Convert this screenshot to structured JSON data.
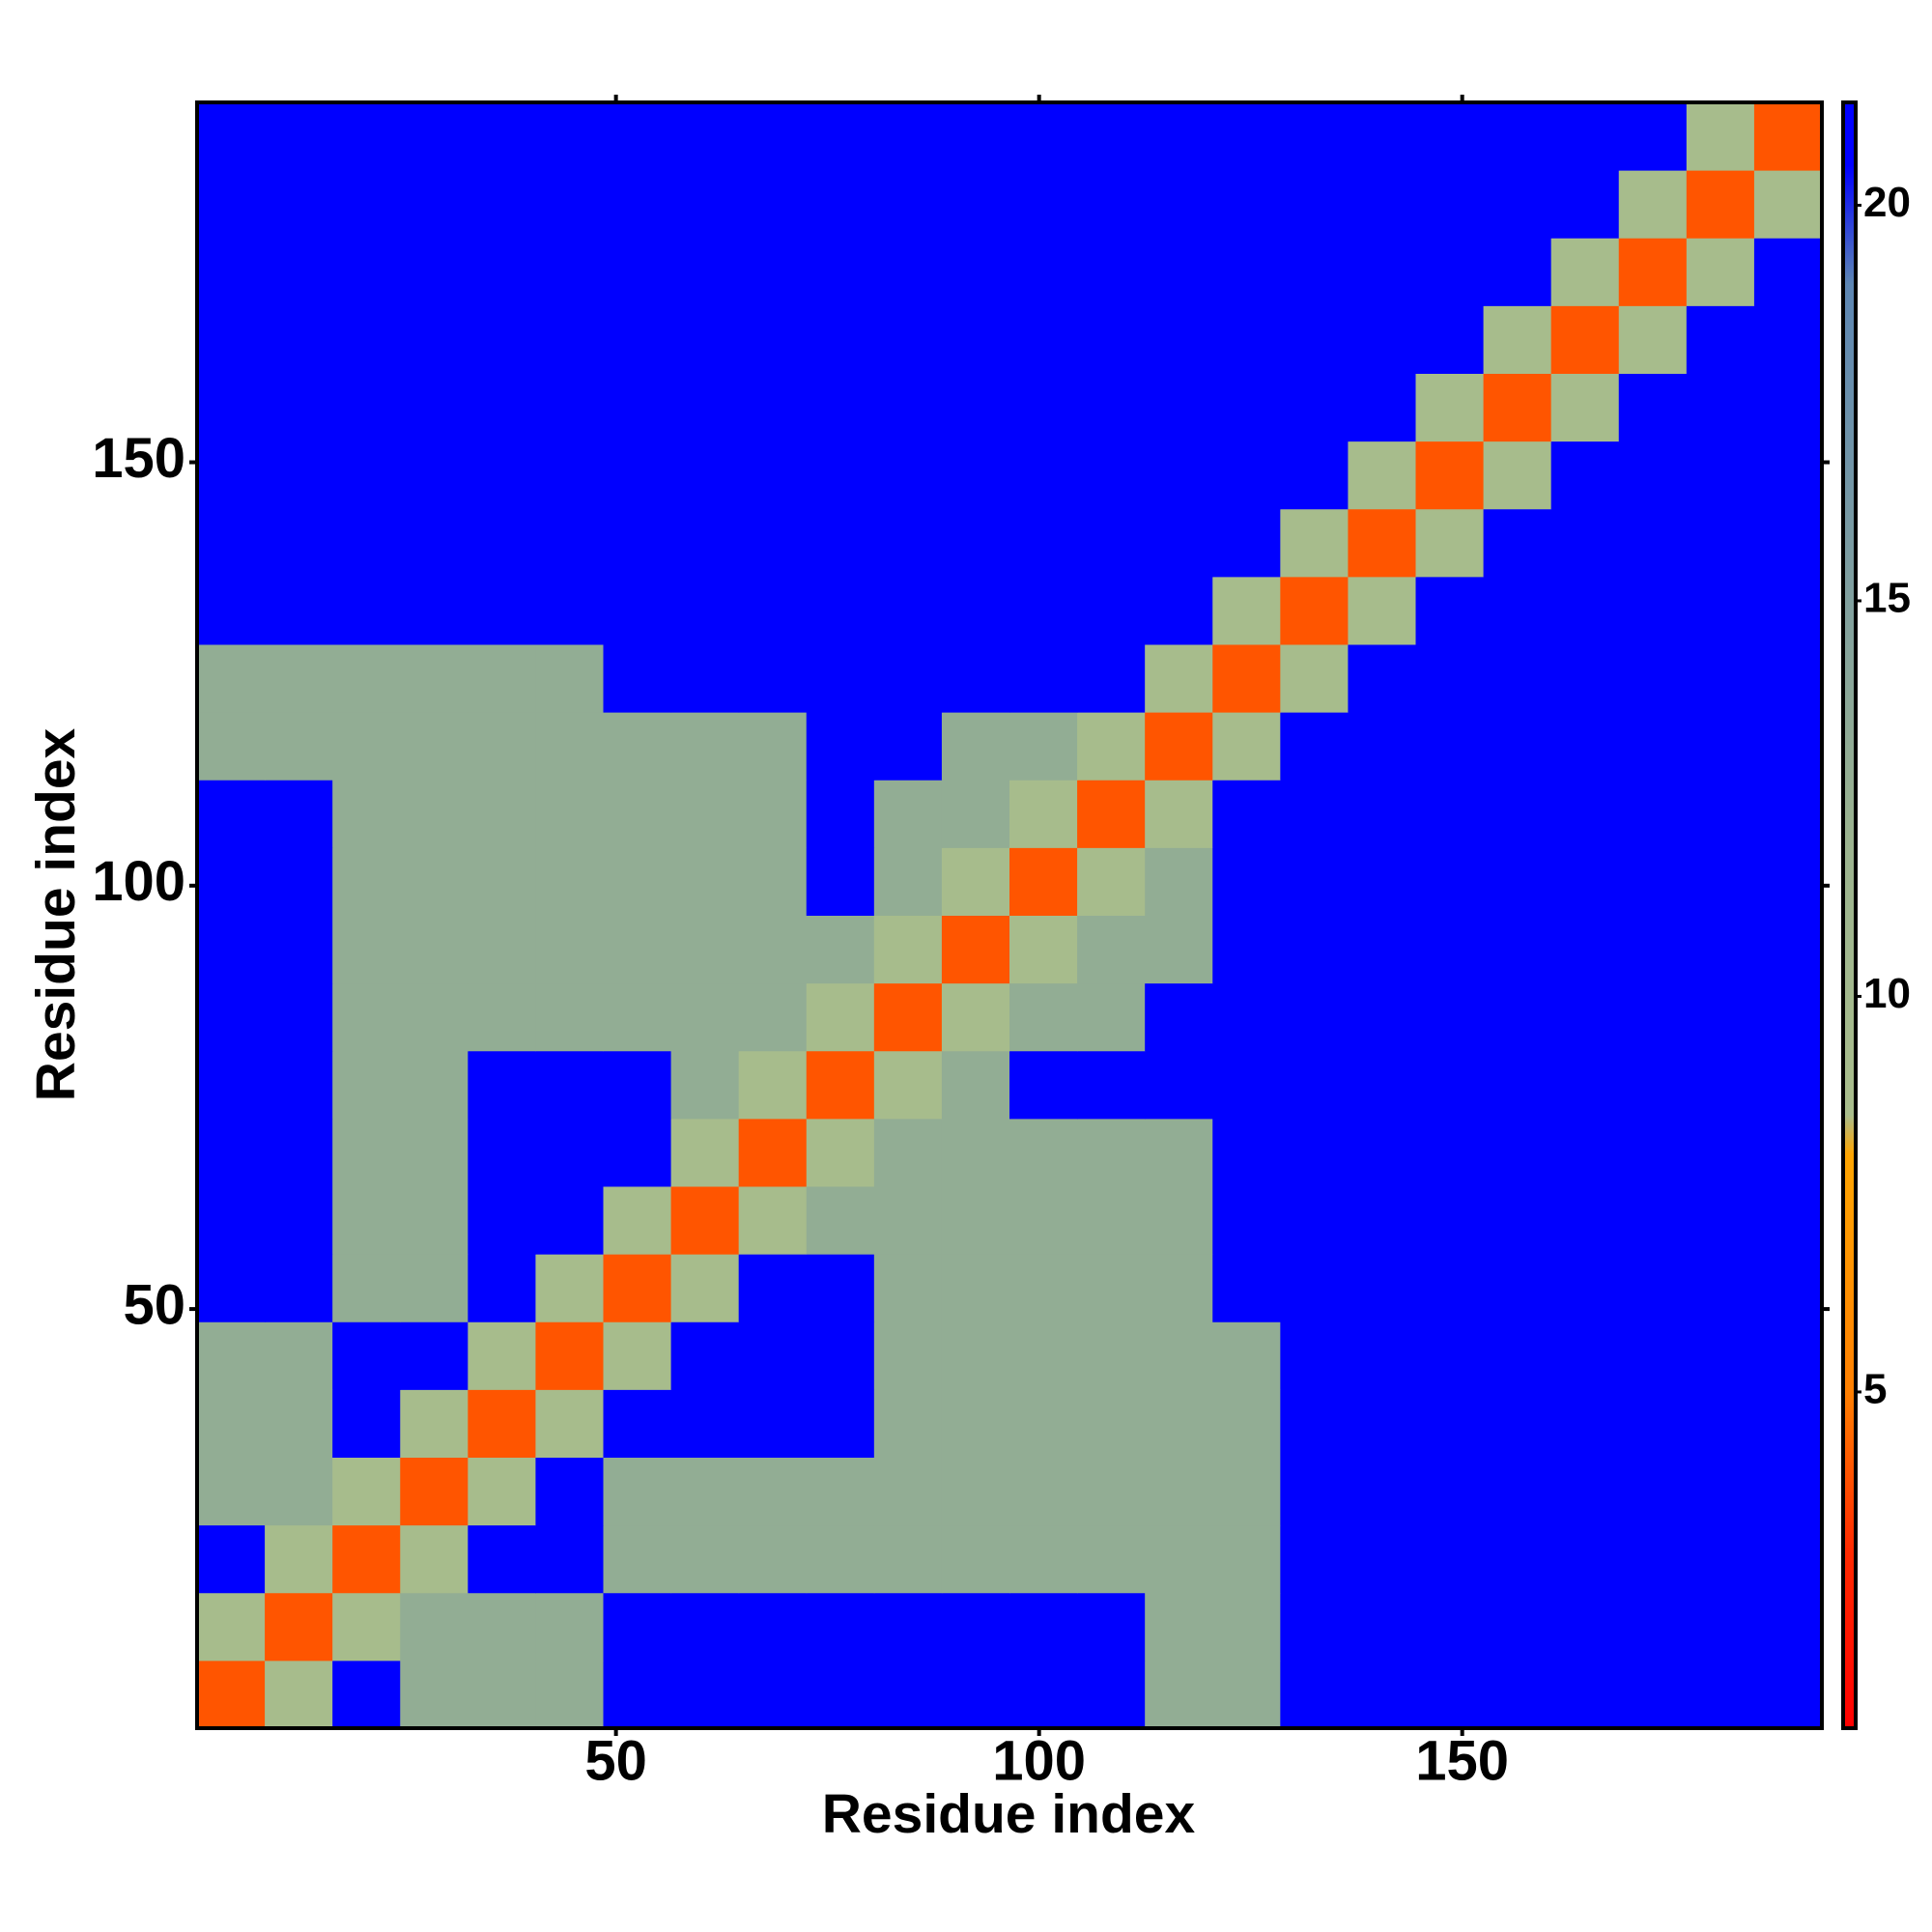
{
  "chart_data": {
    "type": "heatmap",
    "xlabel": "Residue index",
    "ylabel": "Residue index",
    "x": [
      4.5,
      12.5,
      20.5,
      28.5,
      36.5,
      44.5,
      52.5,
      60.5,
      68.5,
      76.5,
      84.5,
      92.5,
      100.5,
      108.5,
      116.5,
      124.5,
      132.5,
      140.5,
      148.5,
      156.5,
      164.5,
      172.5,
      180.5,
      188.5
    ],
    "y": [
      4.5,
      12.5,
      20.5,
      28.5,
      36.5,
      44.5,
      52.5,
      60.5,
      68.5,
      76.5,
      84.5,
      92.5,
      100.5,
      108.5,
      116.5,
      124.5,
      132.5,
      140.5,
      148.5,
      156.5,
      164.5,
      172.5,
      180.5,
      188.5
    ],
    "z": [
      [
        4,
        9,
        21,
        13,
        13,
        13,
        21,
        21,
        21,
        21,
        21,
        21,
        21,
        21,
        13,
        13,
        21,
        21,
        21,
        21,
        21,
        21,
        21,
        21
      ],
      [
        9,
        4,
        9,
        13,
        13,
        13,
        21,
        21,
        21,
        21,
        21,
        21,
        21,
        21,
        13,
        13,
        21,
        21,
        21,
        21,
        21,
        21,
        21,
        21
      ],
      [
        21,
        9,
        4,
        9,
        21,
        21,
        13,
        13,
        13,
        13,
        13,
        13,
        13,
        13,
        13,
        13,
        21,
        21,
        21,
        21,
        21,
        21,
        21,
        21
      ],
      [
        13,
        13,
        9,
        4,
        9,
        21,
        13,
        13,
        13,
        13,
        13,
        13,
        13,
        13,
        13,
        13,
        21,
        21,
        21,
        21,
        21,
        21,
        21,
        21
      ],
      [
        13,
        13,
        21,
        9,
        4,
        9,
        21,
        21,
        21,
        21,
        13,
        13,
        13,
        13,
        13,
        13,
        21,
        21,
        21,
        21,
        21,
        21,
        21,
        21
      ],
      [
        13,
        13,
        21,
        21,
        9,
        4,
        9,
        21,
        21,
        21,
        13,
        13,
        13,
        13,
        13,
        13,
        21,
        21,
        21,
        21,
        21,
        21,
        21,
        21
      ],
      [
        21,
        21,
        13,
        13,
        21,
        9,
        4,
        9,
        21,
        21,
        13,
        13,
        13,
        13,
        13,
        21,
        21,
        21,
        21,
        21,
        21,
        21,
        21,
        21
      ],
      [
        21,
        21,
        13,
        13,
        21,
        21,
        9,
        4,
        9,
        13,
        13,
        13,
        13,
        13,
        13,
        21,
        21,
        21,
        21,
        21,
        21,
        21,
        21,
        21
      ],
      [
        21,
        21,
        13,
        13,
        21,
        21,
        21,
        9,
        4,
        9,
        13,
        13,
        13,
        13,
        13,
        21,
        21,
        21,
        21,
        21,
        21,
        21,
        21,
        21
      ],
      [
        21,
        21,
        13,
        13,
        21,
        21,
        21,
        13,
        9,
        4,
        9,
        13,
        21,
        21,
        21,
        21,
        21,
        21,
        21,
        21,
        21,
        21,
        21,
        21
      ],
      [
        21,
        21,
        13,
        13,
        13,
        13,
        13,
        13,
        13,
        9,
        4,
        9,
        13,
        13,
        21,
        21,
        21,
        21,
        21,
        21,
        21,
        21,
        21,
        21
      ],
      [
        21,
        21,
        13,
        13,
        13,
        13,
        13,
        13,
        13,
        13,
        9,
        4,
        9,
        13,
        13,
        21,
        21,
        21,
        21,
        21,
        21,
        21,
        21,
        21
      ],
      [
        21,
        21,
        13,
        13,
        13,
        13,
        13,
        13,
        13,
        21,
        13,
        9,
        4,
        9,
        13,
        21,
        21,
        21,
        21,
        21,
        21,
        21,
        21,
        21
      ],
      [
        21,
        21,
        13,
        13,
        13,
        13,
        13,
        13,
        13,
        21,
        13,
        13,
        9,
        4,
        9,
        21,
        21,
        21,
        21,
        21,
        21,
        21,
        21,
        21
      ],
      [
        13,
        13,
        13,
        13,
        13,
        13,
        13,
        13,
        13,
        21,
        21,
        13,
        13,
        9,
        4,
        9,
        21,
        21,
        21,
        21,
        21,
        21,
        21,
        21
      ],
      [
        13,
        13,
        13,
        13,
        13,
        13,
        21,
        21,
        21,
        21,
        21,
        21,
        21,
        21,
        9,
        4,
        9,
        21,
        21,
        21,
        21,
        21,
        21,
        21
      ],
      [
        21,
        21,
        21,
        21,
        21,
        21,
        21,
        21,
        21,
        21,
        21,
        21,
        21,
        21,
        21,
        9,
        4,
        9,
        21,
        21,
        21,
        21,
        21,
        21
      ],
      [
        21,
        21,
        21,
        21,
        21,
        21,
        21,
        21,
        21,
        21,
        21,
        21,
        21,
        21,
        21,
        21,
        9,
        4,
        9,
        21,
        21,
        21,
        21,
        21
      ],
      [
        21,
        21,
        21,
        21,
        21,
        21,
        21,
        21,
        21,
        21,
        21,
        21,
        21,
        21,
        21,
        21,
        21,
        9,
        4,
        9,
        21,
        21,
        21,
        21
      ],
      [
        21,
        21,
        21,
        21,
        21,
        21,
        21,
        21,
        21,
        21,
        21,
        21,
        21,
        21,
        21,
        21,
        21,
        21,
        9,
        4,
        9,
        21,
        21,
        21
      ],
      [
        21,
        21,
        21,
        21,
        21,
        21,
        21,
        21,
        21,
        21,
        21,
        21,
        21,
        21,
        21,
        21,
        21,
        21,
        21,
        9,
        4,
        9,
        21,
        21
      ],
      [
        21,
        21,
        21,
        21,
        21,
        21,
        21,
        21,
        21,
        21,
        21,
        21,
        21,
        21,
        21,
        21,
        21,
        21,
        21,
        21,
        9,
        4,
        9,
        21
      ],
      [
        21,
        21,
        21,
        21,
        21,
        21,
        21,
        21,
        21,
        21,
        21,
        21,
        21,
        21,
        21,
        21,
        21,
        21,
        21,
        21,
        21,
        9,
        4,
        9
      ],
      [
        21,
        21,
        21,
        21,
        21,
        21,
        21,
        21,
        21,
        21,
        21,
        21,
        21,
        21,
        21,
        21,
        21,
        21,
        21,
        21,
        21,
        21,
        9,
        4
      ]
    ],
    "xlim": [
      0.5,
      192.5
    ],
    "ylim": [
      0.5,
      192.5
    ],
    "xticks": [
      50,
      100,
      150
    ],
    "yticks": [
      50,
      100,
      150
    ],
    "colorbar": {
      "lim": [
        0.75,
        21.3
      ],
      "ticks": [
        5,
        10,
        15,
        20
      ],
      "colorscale": [
        [
          0.75,
          "#ff0000"
        ],
        [
          3,
          "#ff2a00"
        ],
        [
          5,
          "#ff7f00"
        ],
        [
          8,
          "#ffa500"
        ],
        [
          8.5,
          "#a9bd8c"
        ],
        [
          12,
          "#9bb38f"
        ],
        [
          19,
          "#5d86b3"
        ],
        [
          20.5,
          "#0000ff"
        ],
        [
          21.3,
          "#0000ff"
        ]
      ]
    }
  }
}
